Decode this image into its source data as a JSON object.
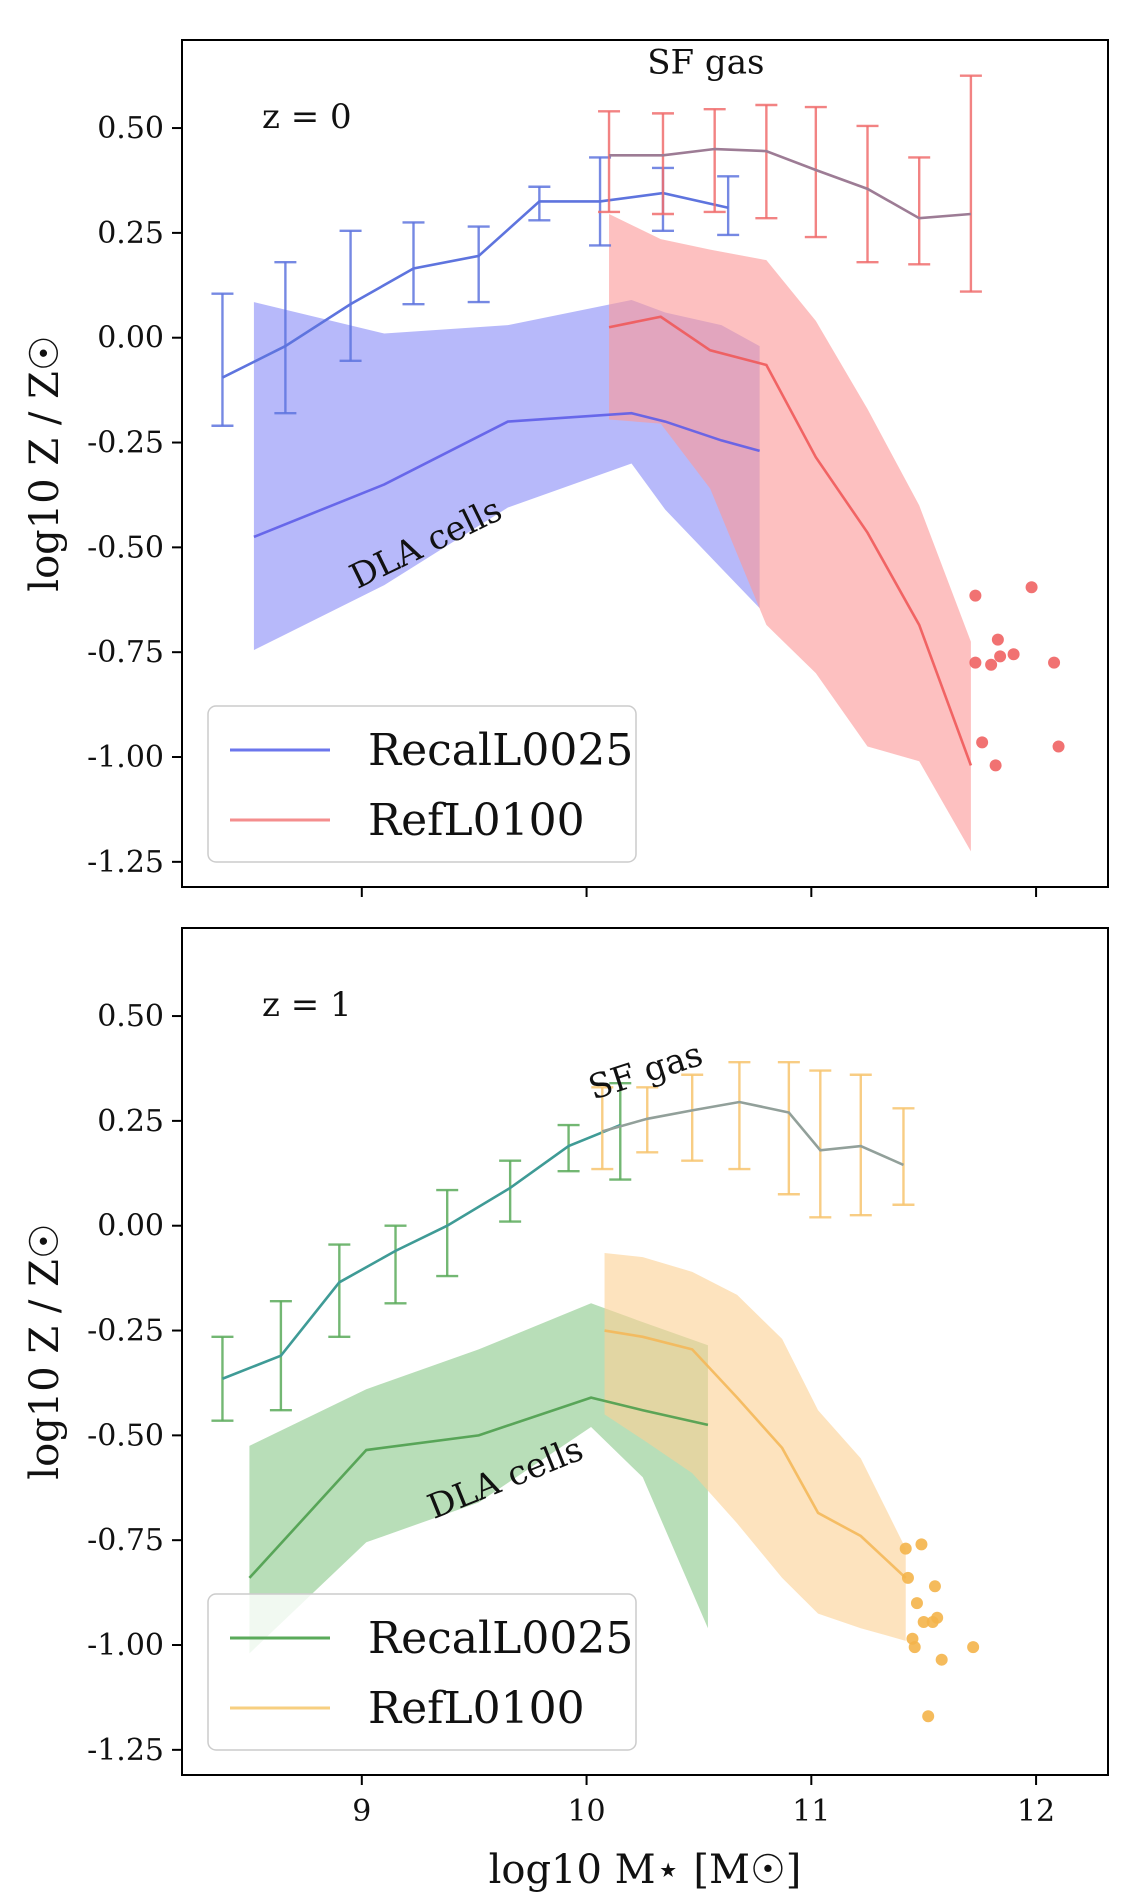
{
  "chart_data": [
    {
      "type": "line",
      "panel": "top",
      "redshift_label": "z = 0",
      "ylabel": "log10 Z / Z☉",
      "xlabel": "",
      "xlim": [
        8.2,
        12.32
      ],
      "ylim": [
        -1.31,
        0.71
      ],
      "yticks": [
        0.5,
        0.25,
        0.0,
        -0.25,
        -0.5,
        -0.75,
        -1.0,
        -1.25
      ],
      "ytick_labels": [
        "0.50",
        "0.25",
        "0.00",
        "-0.25",
        "-0.50",
        "-0.75",
        "-1.00",
        "-1.25"
      ],
      "xticks": [
        9,
        10,
        11,
        12
      ],
      "xtick_labels": [],
      "annotations": [
        {
          "text": "SF gas",
          "x": 10.27,
          "y": 0.63,
          "rotation": 0
        },
        {
          "text": "DLA cells",
          "x": 8.98,
          "y": -0.6,
          "rotation": -26
        }
      ],
      "legend": {
        "position": "lower-left",
        "entries": [
          {
            "label": "RecalL0025",
            "color": "#6b76ec"
          },
          {
            "label": "RefL0100",
            "color": "#f48e8e"
          }
        ]
      },
      "series": [
        {
          "name": "RecalL0025",
          "component": "SF gas",
          "color": "#5e74de",
          "x": [
            8.38,
            8.66,
            8.95,
            9.23,
            9.52,
            9.79,
            10.06,
            10.34,
            10.63
          ],
          "y": [
            -0.095,
            -0.02,
            0.08,
            0.165,
            0.195,
            0.325,
            0.325,
            0.345,
            0.31
          ],
          "yerr_low": [
            -0.21,
            -0.18,
            -0.055,
            0.08,
            0.085,
            0.28,
            0.22,
            0.255,
            0.245
          ],
          "yerr_high": [
            0.105,
            0.18,
            0.255,
            0.275,
            0.265,
            0.36,
            0.43,
            0.405,
            0.385
          ]
        },
        {
          "name": "RefL0100",
          "component": "SF gas",
          "color": "#f06d6d",
          "line_color": "#9d7c95",
          "x": [
            10.1,
            10.34,
            10.57,
            10.8,
            11.02,
            11.25,
            11.48,
            11.71
          ],
          "y": [
            0.435,
            0.435,
            0.45,
            0.445,
            0.4,
            0.355,
            0.285,
            0.295
          ],
          "yerr_low": [
            0.3,
            0.295,
            0.3,
            0.285,
            0.24,
            0.18,
            0.175,
            0.11
          ],
          "yerr_high": [
            0.54,
            0.535,
            0.545,
            0.555,
            0.55,
            0.505,
            0.43,
            0.625
          ]
        },
        {
          "name": "RecalL0025",
          "component": "DLA cells",
          "color": "#5e5ee8",
          "fill_color": "#8b8ef7",
          "x": [
            8.52,
            9.1,
            9.65,
            10.2,
            10.35,
            10.6,
            10.77
          ],
          "y": [
            -0.475,
            -0.35,
            -0.2,
            -0.18,
            -0.2,
            -0.245,
            -0.27
          ],
          "band_low": [
            -0.745,
            -0.59,
            -0.405,
            -0.3,
            -0.41,
            -0.55,
            -0.645
          ],
          "band_high": [
            0.085,
            0.01,
            0.03,
            0.09,
            0.06,
            0.03,
            -0.02
          ]
        },
        {
          "name": "RefL0100",
          "component": "DLA cells",
          "color": "#f05a5a",
          "fill_color": "#fb9a9a",
          "x": [
            10.1,
            10.33,
            10.55,
            10.8,
            11.02,
            11.25,
            11.48,
            11.71
          ],
          "y": [
            0.025,
            0.05,
            -0.03,
            -0.065,
            -0.285,
            -0.465,
            -0.685,
            -1.02
          ],
          "band_low": [
            -0.195,
            -0.205,
            -0.36,
            -0.685,
            -0.8,
            -0.975,
            -1.01,
            -1.225
          ],
          "band_high": [
            0.295,
            0.235,
            0.21,
            0.185,
            0.04,
            -0.17,
            -0.4,
            -0.725
          ]
        }
      ],
      "scatter": {
        "name": "RefL0100 individual",
        "color": "#f06363",
        "x": [
          11.73,
          11.73,
          11.76,
          11.8,
          11.82,
          11.83,
          11.84,
          11.9,
          11.98,
          12.08,
          12.1
        ],
        "y": [
          -0.615,
          -0.775,
          -0.965,
          -0.78,
          -1.02,
          -0.72,
          -0.76,
          -0.755,
          -0.595,
          -0.775,
          -0.975
        ]
      }
    },
    {
      "type": "line",
      "panel": "bottom",
      "redshift_label": "z = 1",
      "ylabel": "log10 Z / Z☉",
      "xlabel": "log10 M⋆ [M☉]",
      "xlim": [
        8.2,
        12.32
      ],
      "ylim": [
        -1.31,
        0.71
      ],
      "yticks": [
        0.5,
        0.25,
        0.0,
        -0.25,
        -0.5,
        -0.75,
        -1.0,
        -1.25
      ],
      "ytick_labels": [
        "0.50",
        "0.25",
        "0.00",
        "-0.25",
        "-0.50",
        "-0.75",
        "-1.00",
        "-1.25"
      ],
      "xticks": [
        9,
        10,
        11,
        12
      ],
      "xtick_labels": [
        "9",
        "10",
        "11",
        "12"
      ],
      "annotations": [
        {
          "text": "SF gas",
          "x": 10.03,
          "y": 0.3,
          "rotation": -18
        },
        {
          "text": "DLA cells",
          "x": 9.32,
          "y": -0.7,
          "rotation": -22
        }
      ],
      "legend": {
        "position": "lower-left",
        "entries": [
          {
            "label": "RecalL0025",
            "color": "#5aaa5a"
          },
          {
            "label": "RefL0100",
            "color": "#f7cf80"
          }
        ]
      },
      "series": [
        {
          "name": "RecalL0025",
          "component": "SF gas",
          "color": "#5aaa5a",
          "line_color": "#3f9b96",
          "x": [
            8.38,
            8.64,
            8.9,
            9.15,
            9.38,
            9.66,
            9.92,
            10.15
          ],
          "y": [
            -0.365,
            -0.31,
            -0.135,
            -0.06,
            0.0,
            0.09,
            0.19,
            0.24
          ],
          "yerr_low": [
            -0.465,
            -0.44,
            -0.265,
            -0.185,
            -0.12,
            0.01,
            0.13,
            0.11
          ],
          "yerr_high": [
            -0.265,
            -0.18,
            -0.045,
            0.0,
            0.085,
            0.155,
            0.24,
            0.34
          ]
        },
        {
          "name": "RefL0100",
          "component": "SF gas",
          "color": "#f7c46e",
          "line_color": "#92a09a",
          "x": [
            10.07,
            10.27,
            10.47,
            10.68,
            10.9,
            11.04,
            11.22,
            11.41
          ],
          "y": [
            0.225,
            0.255,
            0.275,
            0.295,
            0.27,
            0.18,
            0.19,
            0.145
          ],
          "yerr_low": [
            0.135,
            0.175,
            0.155,
            0.135,
            0.075,
            0.02,
            0.025,
            0.05
          ],
          "yerr_high": [
            0.33,
            0.33,
            0.36,
            0.39,
            0.39,
            0.37,
            0.36,
            0.28
          ]
        },
        {
          "name": "RecalL0025",
          "component": "DLA cells",
          "color": "#4e9e4e",
          "fill_color": "#8cca8c",
          "x": [
            8.5,
            9.02,
            9.52,
            10.02,
            10.25,
            10.54
          ],
          "y": [
            -0.84,
            -0.535,
            -0.5,
            -0.41,
            -0.44,
            -0.475
          ],
          "band_low": [
            -1.02,
            -0.755,
            -0.66,
            -0.48,
            -0.6,
            -0.96
          ],
          "band_high": [
            -0.525,
            -0.39,
            -0.295,
            -0.185,
            -0.23,
            -0.285
          ]
        },
        {
          "name": "RefL0100",
          "component": "DLA cells",
          "color": "#f4b85a",
          "fill_color": "#fcd296",
          "x": [
            10.08,
            10.25,
            10.47,
            10.67,
            10.87,
            11.03,
            11.22,
            11.42
          ],
          "y": [
            -0.25,
            -0.265,
            -0.295,
            -0.41,
            -0.53,
            -0.685,
            -0.74,
            -0.84
          ],
          "band_low": [
            -0.45,
            -0.51,
            -0.59,
            -0.71,
            -0.84,
            -0.925,
            -0.96,
            -0.99
          ],
          "band_high": [
            -0.065,
            -0.075,
            -0.11,
            -0.165,
            -0.27,
            -0.44,
            -0.555,
            -0.77
          ]
        }
      ],
      "scatter": {
        "name": "RefL0100 individual",
        "color": "#f4b44a",
        "x": [
          11.42,
          11.43,
          11.45,
          11.46,
          11.47,
          11.49,
          11.5,
          11.52,
          11.54,
          11.55,
          11.56,
          11.58,
          11.72
        ],
        "y": [
          -0.77,
          -0.84,
          -0.985,
          -1.005,
          -0.9,
          -0.76,
          -0.945,
          -1.17,
          -0.945,
          -0.86,
          -0.935,
          -1.035,
          -1.005
        ]
      }
    }
  ]
}
